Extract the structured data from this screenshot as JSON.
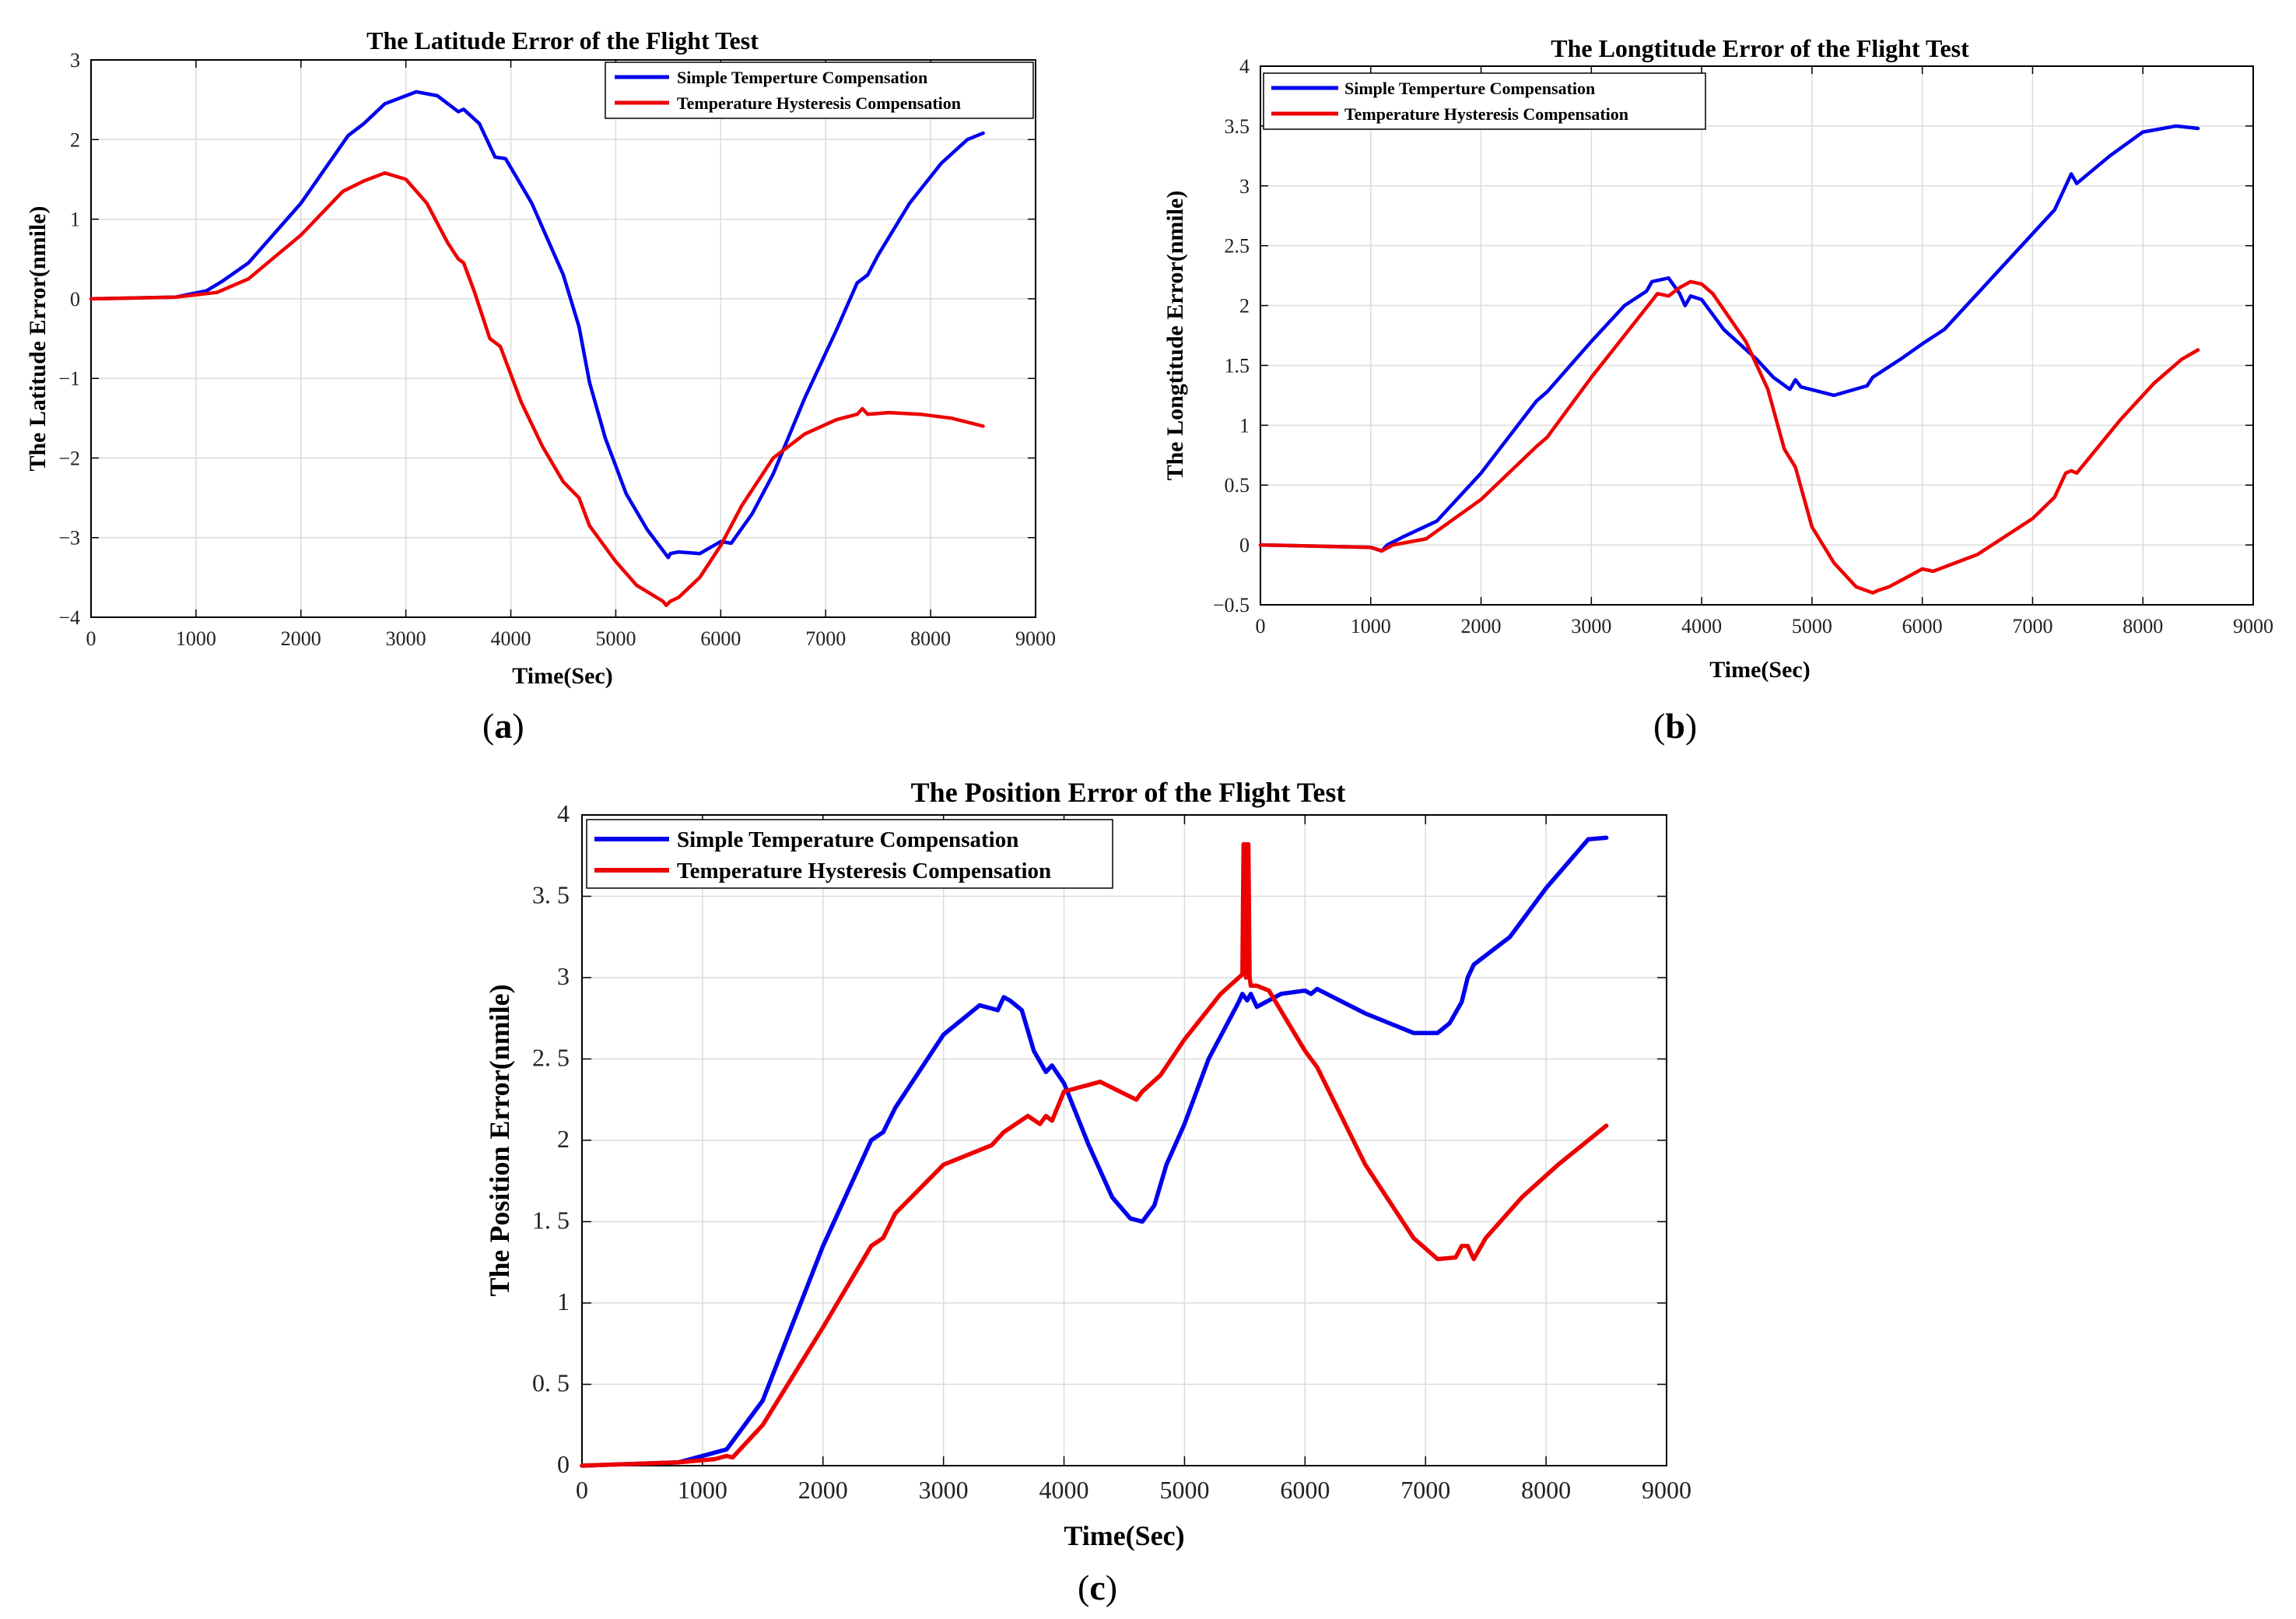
{
  "colors": {
    "blue": "#0000ee",
    "red": "#ee0000",
    "grid": "#dcdcdc"
  },
  "chart_data": [
    {
      "type": "line",
      "caption_letter": "a",
      "title": "The Latitude Error of the Flight Test",
      "xlabel": "Time(Sec)",
      "ylabel": "The Latitude Error(nmile)",
      "xlim": [
        0,
        9000
      ],
      "ylim": [
        -4,
        3
      ],
      "xticks": [
        0,
        1000,
        2000,
        3000,
        4000,
        5000,
        6000,
        7000,
        8000,
        9000
      ],
      "yticks": [
        -4,
        -3,
        -2,
        -1,
        0,
        1,
        2,
        3
      ],
      "ytick_labels": [
        "−4",
        "−3",
        "−2",
        "−1",
        "0",
        "1",
        "2",
        "3"
      ],
      "grid": true,
      "legend_position": "top-right",
      "series": [
        {
          "name": "Simple Temperture Compensation",
          "color": "blue",
          "x": [
            0,
            800,
            1100,
            1250,
            1500,
            2000,
            2450,
            2600,
            2800,
            3100,
            3300,
            3500,
            3550,
            3700,
            3850,
            3950,
            4200,
            4500,
            4650,
            4750,
            4900,
            5100,
            5300,
            5500,
            5520,
            5600,
            5800,
            6000,
            6100,
            6300,
            6500,
            6800,
            7100,
            7300,
            7400,
            7500,
            7800,
            8100,
            8350,
            8500
          ],
          "y": [
            0,
            0.02,
            0.1,
            0.22,
            0.45,
            1.2,
            2.05,
            2.2,
            2.45,
            2.6,
            2.55,
            2.35,
            2.38,
            2.2,
            1.78,
            1.76,
            1.2,
            0.3,
            -0.35,
            -1.05,
            -1.75,
            -2.45,
            -2.9,
            -3.25,
            -3.2,
            -3.18,
            -3.2,
            -3.05,
            -3.07,
            -2.7,
            -2.2,
            -1.25,
            -0.4,
            0.2,
            0.3,
            0.55,
            1.2,
            1.7,
            2.0,
            2.08
          ]
        },
        {
          "name": "Temperature Hysteresis Compensation",
          "color": "red",
          "x": [
            0,
            800,
            1200,
            1500,
            2000,
            2400,
            2600,
            2800,
            3000,
            3200,
            3400,
            3500,
            3550,
            3650,
            3800,
            3900,
            4100,
            4300,
            4500,
            4650,
            4750,
            5000,
            5200,
            5450,
            5480,
            5520,
            5600,
            5800,
            6000,
            6200,
            6500,
            6800,
            7100,
            7300,
            7350,
            7400,
            7600,
            7900,
            8200,
            8500
          ],
          "y": [
            0,
            0.02,
            0.08,
            0.25,
            0.8,
            1.35,
            1.48,
            1.58,
            1.5,
            1.2,
            0.7,
            0.5,
            0.45,
            0.1,
            -0.5,
            -0.6,
            -1.3,
            -1.85,
            -2.3,
            -2.5,
            -2.85,
            -3.3,
            -3.6,
            -3.8,
            -3.85,
            -3.8,
            -3.75,
            -3.5,
            -3.1,
            -2.6,
            -2.0,
            -1.7,
            -1.52,
            -1.45,
            -1.38,
            -1.45,
            -1.43,
            -1.45,
            -1.5,
            -1.6
          ]
        }
      ]
    },
    {
      "type": "line",
      "caption_letter": "b",
      "title": "The Longtitude Error of the Flight Test",
      "xlabel": "Time(Sec)",
      "ylabel": "The Longtitude Error(nmile)",
      "xlim": [
        0,
        9000
      ],
      "ylim": [
        -0.5,
        4
      ],
      "xticks": [
        0,
        1000,
        2000,
        3000,
        4000,
        5000,
        6000,
        7000,
        8000,
        9000
      ],
      "yticks": [
        -0.5,
        0,
        0.5,
        1,
        1.5,
        2,
        2.5,
        3,
        3.5,
        4
      ],
      "ytick_labels": [
        "−0.5",
        "0",
        "0.5",
        "1",
        "1.5",
        "2",
        "2.5",
        "3",
        "3.5",
        "4"
      ],
      "grid": true,
      "legend_position": "top-left",
      "series": [
        {
          "name": "Simple Temperture Compensation",
          "color": "blue",
          "x": [
            0,
            1000,
            1100,
            1150,
            1300,
            1600,
            2000,
            2500,
            2600,
            3000,
            3300,
            3500,
            3550,
            3700,
            3800,
            3850,
            3900,
            4000,
            4200,
            4500,
            4650,
            4800,
            4850,
            4900,
            5200,
            5500,
            5550,
            5800,
            6000,
            6200,
            6500,
            7000,
            7200,
            7300,
            7350,
            7400,
            7700,
            8000,
            8300,
            8500
          ],
          "y": [
            0,
            -0.02,
            -0.05,
            0.0,
            0.07,
            0.2,
            0.6,
            1.2,
            1.28,
            1.7,
            2.0,
            2.12,
            2.2,
            2.23,
            2.1,
            2.0,
            2.08,
            2.05,
            1.8,
            1.55,
            1.4,
            1.3,
            1.38,
            1.32,
            1.25,
            1.33,
            1.4,
            1.55,
            1.68,
            1.8,
            2.1,
            2.6,
            2.8,
            3.0,
            3.1,
            3.02,
            3.25,
            3.45,
            3.5,
            3.48
          ]
        },
        {
          "name": "Temperature Hysteresis Compensation",
          "color": "red",
          "x": [
            0,
            1000,
            1100,
            1200,
            1500,
            2000,
            2500,
            2600,
            3000,
            3300,
            3600,
            3700,
            3800,
            3900,
            4000,
            4100,
            4400,
            4600,
            4750,
            4850,
            5000,
            5200,
            5400,
            5550,
            5600,
            5700,
            5900,
            6000,
            6100,
            6500,
            7000,
            7200,
            7300,
            7350,
            7400,
            7800,
            8100,
            8350,
            8500
          ],
          "y": [
            0,
            -0.02,
            -0.05,
            0.0,
            0.05,
            0.38,
            0.82,
            0.9,
            1.4,
            1.75,
            2.1,
            2.08,
            2.15,
            2.2,
            2.18,
            2.1,
            1.7,
            1.3,
            0.8,
            0.65,
            0.15,
            -0.15,
            -0.35,
            -0.4,
            -0.38,
            -0.35,
            -0.25,
            -0.2,
            -0.22,
            -0.08,
            0.22,
            0.4,
            0.6,
            0.62,
            0.6,
            1.05,
            1.35,
            1.55,
            1.63
          ]
        }
      ]
    },
    {
      "type": "line",
      "caption_letter": "c",
      "title": "The Position Error of the Flight Test",
      "xlabel": "Time(Sec)",
      "ylabel": "The Position Error(nmile)",
      "xlim": [
        0,
        9000
      ],
      "ylim": [
        0,
        4
      ],
      "xticks": [
        0,
        1000,
        2000,
        3000,
        4000,
        5000,
        6000,
        7000,
        8000,
        9000
      ],
      "yticks": [
        0,
        0.5,
        1,
        1.5,
        2,
        2.5,
        3,
        3.5,
        4
      ],
      "ytick_labels": [
        "0",
        "0. 5",
        "1",
        "1. 5",
        "2",
        "2. 5",
        "3",
        "3. 5",
        "4"
      ],
      "grid": true,
      "legend_position": "top-left",
      "series": [
        {
          "name": "Simple Temperature Compensation",
          "color": "blue",
          "x": [
            0,
            800,
            1100,
            1200,
            1250,
            1500,
            2000,
            2400,
            2500,
            2600,
            3000,
            3300,
            3450,
            3500,
            3550,
            3650,
            3750,
            3850,
            3900,
            4000,
            4200,
            4400,
            4550,
            4650,
            4750,
            4850,
            5000,
            5200,
            5450,
            5480,
            5520,
            5550,
            5600,
            5800,
            6000,
            6050,
            6100,
            6500,
            6900,
            7100,
            7200,
            7300,
            7350,
            7400,
            7700,
            8000,
            8350,
            8500
          ],
          "y": [
            0,
            0.02,
            0.08,
            0.1,
            0.15,
            0.4,
            1.35,
            2.0,
            2.05,
            2.2,
            2.65,
            2.83,
            2.8,
            2.88,
            2.86,
            2.8,
            2.55,
            2.42,
            2.46,
            2.35,
            1.98,
            1.65,
            1.52,
            1.5,
            1.6,
            1.85,
            2.1,
            2.5,
            2.85,
            2.9,
            2.86,
            2.9,
            2.82,
            2.9,
            2.92,
            2.9,
            2.93,
            2.78,
            2.66,
            2.66,
            2.72,
            2.85,
            3.0,
            3.08,
            3.25,
            3.55,
            3.85,
            3.86
          ]
        },
        {
          "name": "Temperature Hysteresis Compensation",
          "color": "red",
          "x": [
            0,
            800,
            1100,
            1200,
            1250,
            1500,
            2000,
            2400,
            2500,
            2600,
            3000,
            3400,
            3500,
            3700,
            3800,
            3850,
            3900,
            4000,
            4300,
            4600,
            4650,
            4800,
            5000,
            5300,
            5480,
            5490,
            5500,
            5510,
            5515,
            5520,
            5530,
            5540,
            5550,
            5600,
            5700,
            6000,
            6100,
            6500,
            6900,
            7100,
            7250,
            7300,
            7350,
            7400,
            7500,
            7800,
            8100,
            8500
          ],
          "y": [
            0,
            0.02,
            0.04,
            0.06,
            0.05,
            0.25,
            0.85,
            1.35,
            1.4,
            1.55,
            1.85,
            1.97,
            2.05,
            2.15,
            2.1,
            2.15,
            2.12,
            2.3,
            2.36,
            2.25,
            2.3,
            2.4,
            2.62,
            2.9,
            3.02,
            3.82,
            3.82,
            3.0,
            3.82,
            3.82,
            3.82,
            3.0,
            2.95,
            2.95,
            2.92,
            2.55,
            2.45,
            1.85,
            1.4,
            1.27,
            1.28,
            1.35,
            1.35,
            1.27,
            1.4,
            1.65,
            1.85,
            2.09
          ]
        }
      ]
    }
  ]
}
